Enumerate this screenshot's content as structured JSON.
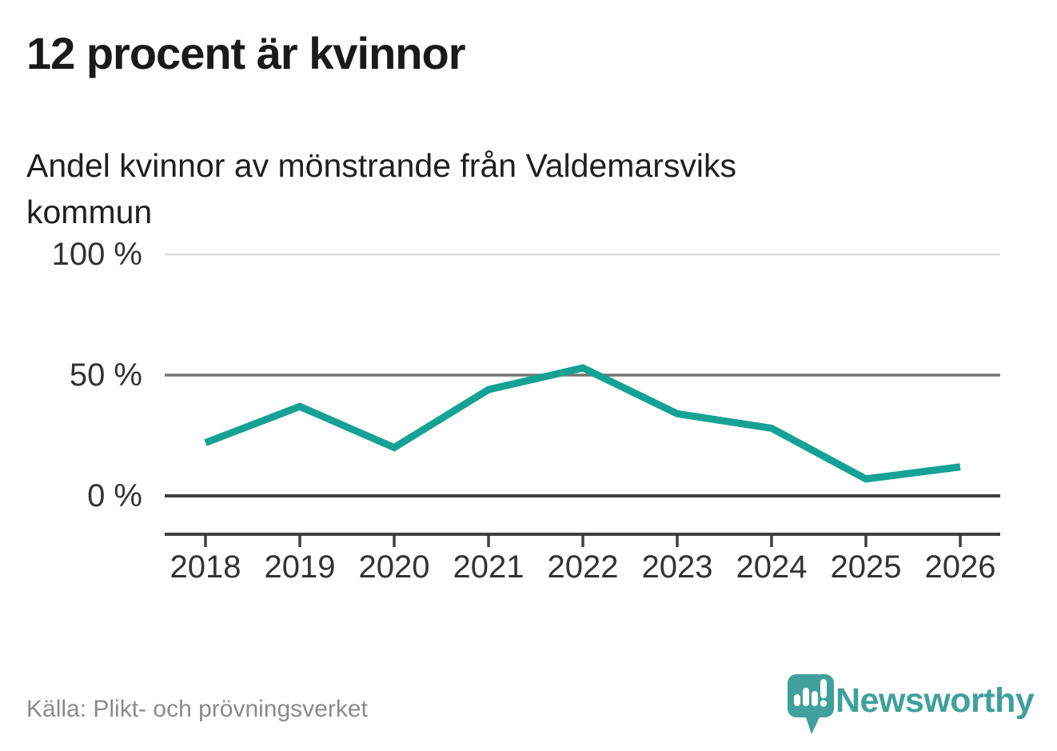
{
  "header": {
    "title": "12 procent är kvinnor",
    "subtitle_lines": [
      "Andel kvinnor av mönstrande från Valdemarsviks",
      "kommun"
    ]
  },
  "chart_data": {
    "type": "line",
    "title": "12 procent är kvinnor",
    "subtitle": "Andel kvinnor av mönstrande från Valdemarsviks kommun",
    "categories": [
      "2018",
      "2019",
      "2020",
      "2021",
      "2022",
      "2023",
      "2024",
      "2025",
      "2026"
    ],
    "values": [
      22,
      37,
      20,
      44,
      53,
      34,
      28,
      7,
      12
    ],
    "unit": "%",
    "xlabel": "",
    "ylabel": "",
    "ylim": [
      0,
      100
    ],
    "yticks": [
      {
        "value": 0,
        "label": "0 %"
      },
      {
        "value": 50,
        "label": "50 %"
      },
      {
        "value": 100,
        "label": "100 %"
      }
    ],
    "legend": "none",
    "grid": "horizontal",
    "line_color": "#15a295"
  },
  "footer": {
    "source": "Källa: Plikt- och prövningsverket",
    "brand": "Newsworthy"
  },
  "colors": {
    "accent_teal": "#15a295",
    "brand_teal": "#3fa09c",
    "grid_light": "#d8d8d8",
    "grid_mid": "#747474",
    "axis_dark": "#3f3f3f",
    "text_dark": "#1a1a1a",
    "text_muted": "#8b8b8b"
  }
}
